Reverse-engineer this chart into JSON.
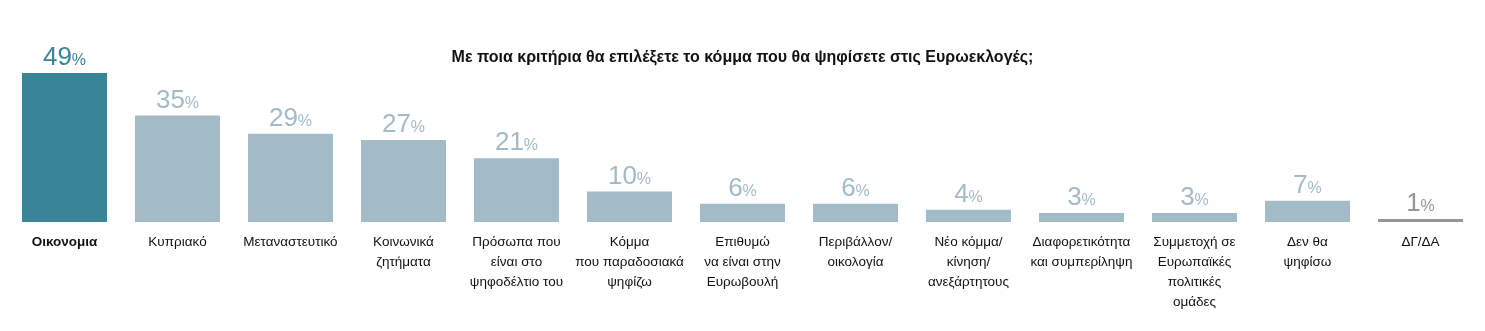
{
  "chart_data": {
    "type": "bar",
    "title": "Με ποια κριτήρια θα επιλέξετε το κόμμα που θα ψηφίσετε στις Ευρωεκλογές;",
    "categories": [
      "Οικονομια",
      "Κυπριακό",
      "Μεταναστευτικό",
      "Κοινωνικά\nζητήματα",
      "Πρόσωπα που\nείναι στο\nψηφοδέλτιο του",
      "Κόμμα\nπου παραδοσιακά\nψηφίζω",
      "Επιθυμώ\nνα είναι στην\nΕυρωβουλή",
      "Περιβάλλον/\nοικολογία",
      "Νέο κόμμα/\nκίνηση/\nανεξάρτητους",
      "Διαφορετικότητα\nκαι συμπερίληψη",
      "Συμμετοχή σε\nΕυρωπαϊκές\nπολιτικές\nομάδες",
      "Δεν θα\nψηφίσω",
      "ΔΓ/ΔΑ"
    ],
    "values": [
      49,
      35,
      29,
      27,
      21,
      10,
      6,
      6,
      4,
      3,
      3,
      7,
      1
    ],
    "value_labels": [
      "49%",
      "35%",
      "29%",
      "27%",
      "21%",
      "10%",
      "6%",
      "6%",
      "4%",
      "3%",
      "3%",
      "7%",
      "1%"
    ],
    "colors": [
      "#3a8497",
      "#a3bbc7",
      "#a3bbc7",
      "#a3bbc7",
      "#a3bbc7",
      "#a3bbc7",
      "#a3bbc7",
      "#a3bbc7",
      "#a3bbc7",
      "#a3bbc7",
      "#a3bbc7",
      "#a3bbc7",
      "#969696"
    ],
    "grid": false,
    "legend": false
  }
}
